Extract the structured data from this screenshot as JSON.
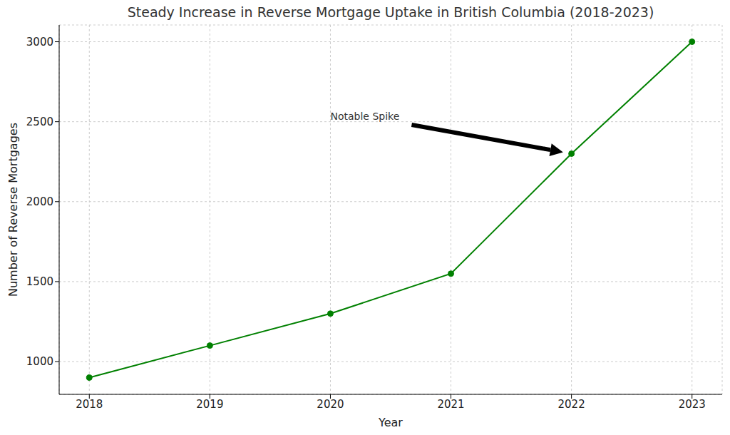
{
  "chart_data": {
    "type": "line",
    "title": "Steady Increase in Reverse Mortgage Uptake in British Columbia (2018-2023)",
    "x_label": "Year",
    "y_label": "Number of Reverse Mortgages",
    "x": [
      2018,
      2019,
      2020,
      2021,
      2022,
      2023
    ],
    "values": [
      900,
      1100,
      1300,
      1550,
      2300,
      3000
    ],
    "color": "#008000",
    "marker": "circle",
    "xlim": [
      2017.75,
      2023.25
    ],
    "xticks": [
      2018,
      2019,
      2020,
      2021,
      2022,
      2023
    ],
    "ylim": [
      795,
      3105
    ],
    "yticks": [
      1000,
      1500,
      2000,
      2500,
      3000
    ],
    "grid": true,
    "annotations": [
      {
        "text": "Notable Spike",
        "x": 2020,
        "y": 2530,
        "xy": [
          2022,
          2300
        ]
      }
    ]
  }
}
